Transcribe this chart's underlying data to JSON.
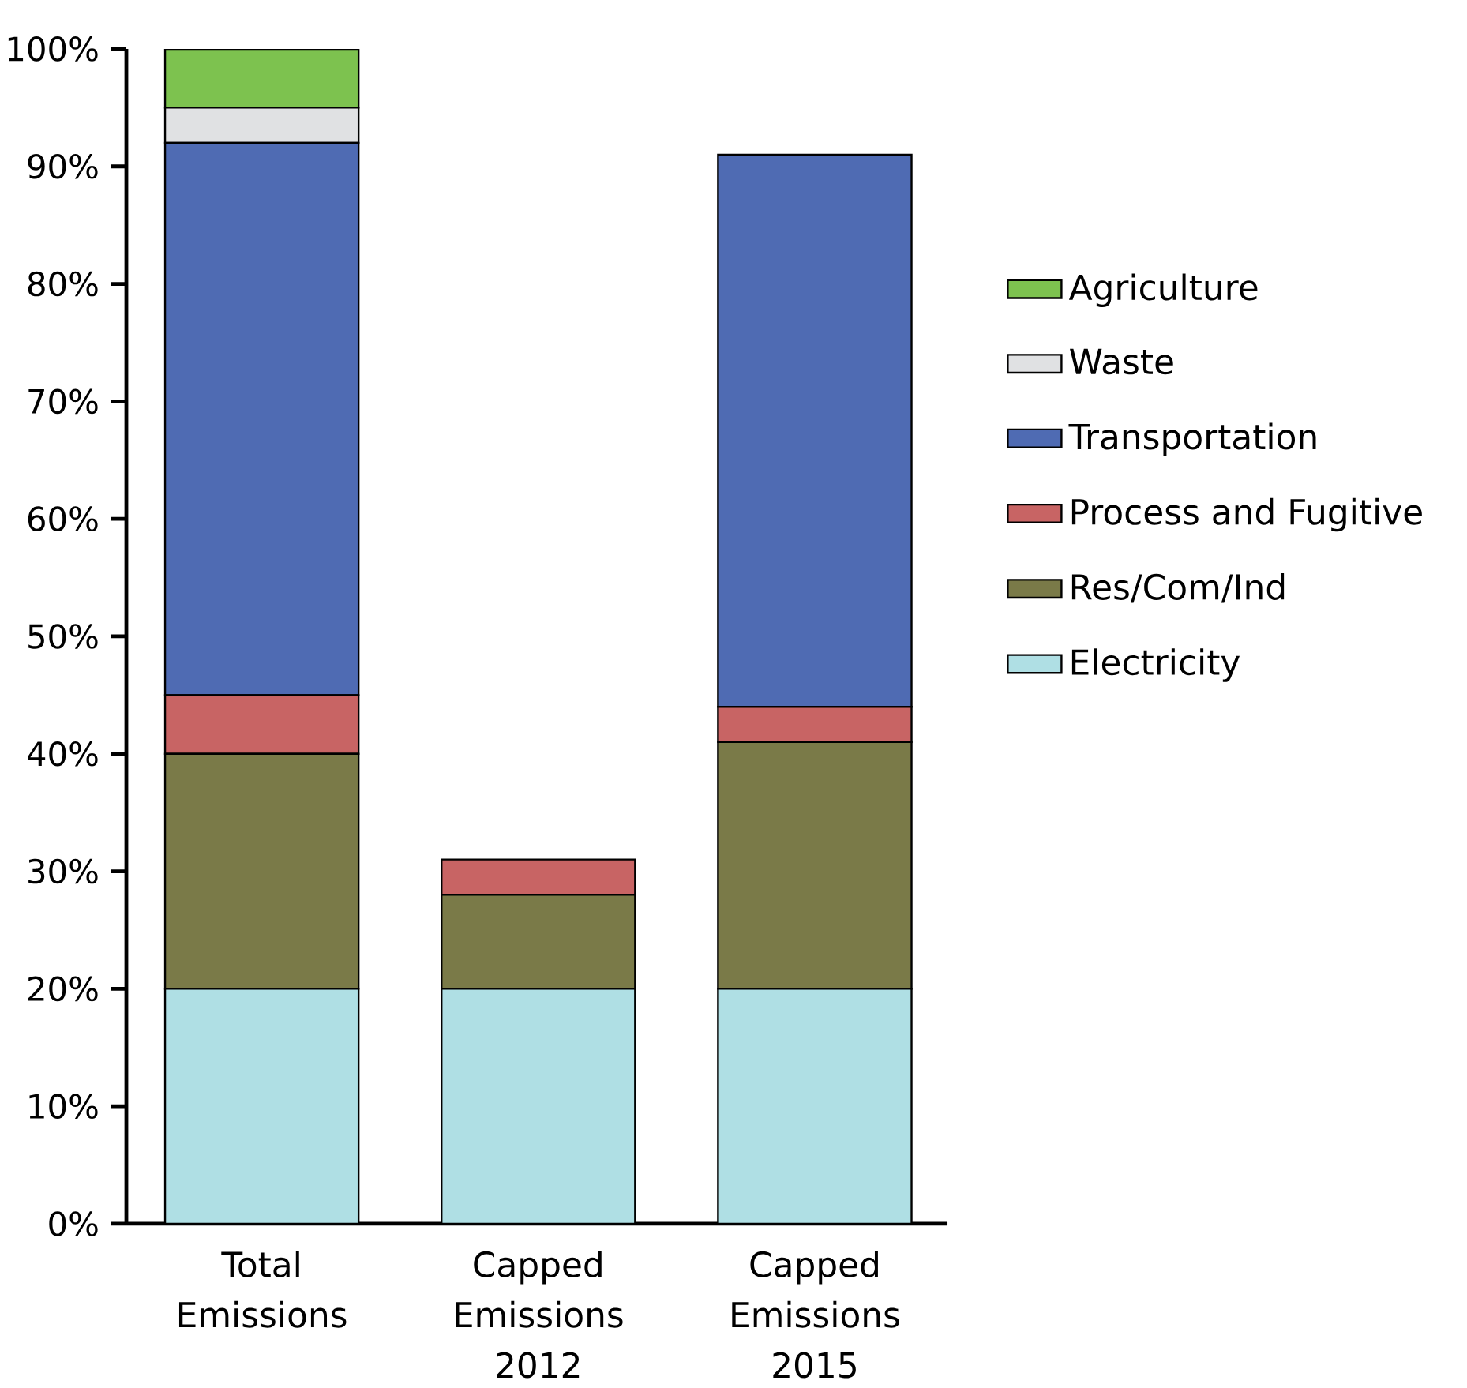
{
  "chart_data": {
    "type": "bar",
    "stacked": true,
    "categories": [
      "Total Emissions",
      "Capped Emissions 2012",
      "Capped Emissions 2015"
    ],
    "series": [
      {
        "name": "Electricity",
        "color": "#afdfe4",
        "values": [
          20,
          20,
          20
        ]
      },
      {
        "name": "Res/Com/Ind",
        "color": "#7a7a48",
        "values": [
          20,
          8,
          21
        ]
      },
      {
        "name": "Process and Fugitive",
        "color": "#c86464",
        "values": [
          5,
          3,
          3
        ]
      },
      {
        "name": "Transportation",
        "color": "#4f6bb3",
        "values": [
          47,
          0,
          47
        ]
      },
      {
        "name": "Waste",
        "color": "#e0e1e3",
        "values": [
          3,
          0,
          0
        ]
      },
      {
        "name": "Agriculture",
        "color": "#7dc24f",
        "values": [
          5,
          0,
          0
        ]
      }
    ],
    "ylim": [
      0,
      100
    ],
    "yticks": [
      {
        "value": 0,
        "label": "0%"
      },
      {
        "value": 10,
        "label": "10%"
      },
      {
        "value": 20,
        "label": "20%"
      },
      {
        "value": 30,
        "label": "30%"
      },
      {
        "value": 40,
        "label": "40%"
      },
      {
        "value": 50,
        "label": "50%"
      },
      {
        "value": 60,
        "label": "60%"
      },
      {
        "value": 70,
        "label": "70%"
      },
      {
        "value": 80,
        "label": "80%"
      },
      {
        "value": 90,
        "label": "90%"
      },
      {
        "value": 100,
        "label": "100%"
      }
    ],
    "grid": false,
    "legend": "right"
  }
}
